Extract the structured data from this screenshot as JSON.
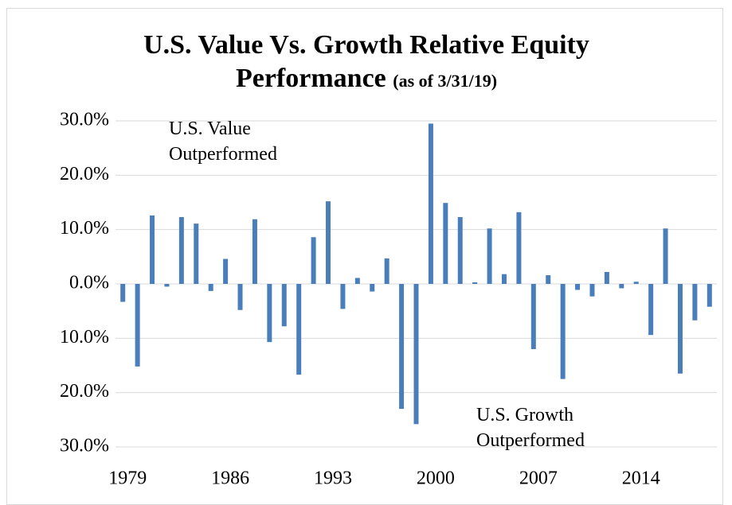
{
  "chart_data": {
    "type": "bar",
    "title": "U.S. Value Vs. Growth Relative Equity Performance",
    "subtitle": "(as of 3/31/19)",
    "annotations": [
      [
        "U.S. Value",
        "Outperformed"
      ],
      [
        "U.S. Growth",
        "Outperformed"
      ]
    ],
    "categories": [
      "1979",
      null,
      null,
      null,
      null,
      null,
      null,
      "1986",
      null,
      null,
      null,
      null,
      null,
      null,
      "1993",
      null,
      null,
      null,
      null,
      null,
      null,
      "2000",
      null,
      null,
      null,
      null,
      null,
      null,
      "2007",
      null,
      null,
      null,
      null,
      null,
      null,
      "2014",
      null,
      null,
      null,
      null,
      null
    ],
    "values": [
      -3.3,
      -15.2,
      12.6,
      -0.5,
      12.3,
      11.1,
      -1.3,
      4.6,
      -4.8,
      11.9,
      -10.7,
      -7.8,
      -16.7,
      8.6,
      15.2,
      -4.6,
      1.1,
      -1.4,
      4.7,
      -23,
      -25.8,
      29.5,
      14.9,
      12.3,
      0.3,
      10.2,
      1.8,
      13.2,
      -12,
      1.6,
      -17.5,
      -1.1,
      -2.3,
      2.2,
      -0.8,
      0.4,
      -9.4,
      10.2,
      -16.5,
      -6.7,
      -4.2
    ],
    "color": "#4a7ebb",
    "ylim": [
      -30,
      30
    ],
    "yticks": [
      {
        "value": 30,
        "label": "30.0%"
      },
      {
        "value": 20,
        "label": "20.0%"
      },
      {
        "value": 10,
        "label": "10.0%"
      },
      {
        "value": 0,
        "label": "0.0%"
      },
      {
        "value": -10,
        "label": "10.0%"
      },
      {
        "value": -20,
        "label": "20.0%"
      },
      {
        "value": -30,
        "label": "30.0%"
      }
    ],
    "grid": true
  }
}
